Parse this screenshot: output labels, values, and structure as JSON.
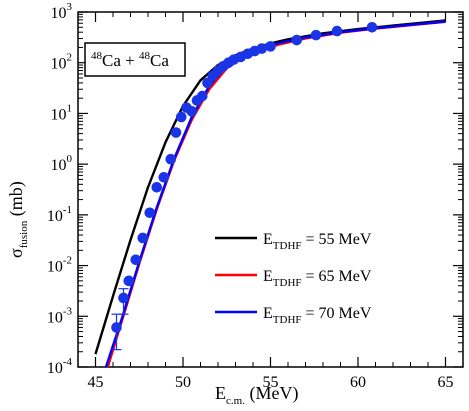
{
  "chart_data": {
    "type": "line",
    "annotation": {
      "a1": "48",
      "t1": "Ca + ",
      "a2": "48",
      "t2": "Ca"
    },
    "xlabel": {
      "main": "E",
      "sub": "c.m.",
      "unit": " (MeV)"
    },
    "ylabel": {
      "main": "σ",
      "sub": "fusion",
      "unit": " (mb)"
    },
    "xlim": [
      44,
      66
    ],
    "ylim_log10": [
      -4,
      3
    ],
    "y_scale": "log",
    "x_ticks": [
      45,
      50,
      55,
      60,
      65
    ],
    "x_tick_labels": [
      "45",
      "50",
      "55",
      "60",
      "65"
    ],
    "y_ticks": [
      -4,
      -3,
      -2,
      -1,
      0,
      1,
      2,
      3
    ],
    "y_tick_labels": [
      {
        "base": "10",
        "exp": "-4"
      },
      {
        "base": "10",
        "exp": "-3"
      },
      {
        "base": "10",
        "exp": "-2"
      },
      {
        "base": "10",
        "exp": "-1"
      },
      {
        "base": "10",
        "exp": "0"
      },
      {
        "base": "10",
        "exp": "1"
      },
      {
        "base": "10",
        "exp": "2"
      },
      {
        "base": "10",
        "exp": "3"
      }
    ],
    "legend_position": "bottom-right",
    "series": [
      {
        "name": {
          "main": "E",
          "sub": "TDHF",
          "rest": " = 55 MeV"
        },
        "color": "#000000",
        "x": [
          45.0,
          46.0,
          47.0,
          48.0,
          49.0,
          50.0,
          51.0,
          52.0,
          53.0,
          54.0,
          55.0,
          56.0,
          58.0,
          60.0,
          62.0,
          65.0
        ],
        "y": [
          0.00018,
          0.0025,
          0.032,
          0.35,
          2.7,
          14,
          45,
          90,
          140,
          190,
          240,
          290,
          380,
          460,
          540,
          680
        ]
      },
      {
        "name": {
          "main": "E",
          "sub": "TDHF",
          "rest": " = 65 MeV"
        },
        "color": "#ff0000",
        "x": [
          45.7,
          46.5,
          47.5,
          48.5,
          49.5,
          50.5,
          51.5,
          52.5,
          53.5,
          54.5,
          55.5,
          57.0,
          59.0,
          61.0,
          63.0,
          65.0
        ],
        "y": [
          0.0001,
          0.0008,
          0.011,
          0.13,
          1.2,
          7.5,
          30,
          78,
          130,
          180,
          230,
          300,
          390,
          470,
          550,
          640
        ]
      },
      {
        "name": {
          "main": "E",
          "sub": "TDHF",
          "rest": " = 70 MeV"
        },
        "color": "#0000ff",
        "x": [
          45.6,
          46.5,
          47.5,
          48.5,
          49.5,
          50.5,
          51.5,
          52.5,
          53.5,
          54.5,
          55.5,
          57.0,
          59.0,
          61.0,
          63.0,
          65.0
        ],
        "y": [
          0.0001,
          0.0009,
          0.012,
          0.14,
          1.3,
          8.5,
          35,
          88,
          145,
          195,
          245,
          315,
          400,
          480,
          560,
          650
        ]
      }
    ],
    "points": {
      "color": "#1a35e6",
      "x": [
        46.2,
        46.6,
        46.9,
        47.3,
        47.7,
        48.1,
        48.5,
        48.9,
        49.3,
        49.6,
        49.9,
        50.2,
        50.5,
        50.8,
        51.1,
        51.4,
        51.7,
        52.0,
        52.3,
        52.6,
        52.9,
        53.3,
        53.7,
        54.1,
        54.5,
        55.0,
        56.5,
        57.6,
        58.8,
        60.8
      ],
      "y": [
        0.0006,
        0.0023,
        0.005,
        0.013,
        0.035,
        0.11,
        0.35,
        0.55,
        1.25,
        4.2,
        8.5,
        13,
        11,
        18,
        22,
        40,
        55,
        70,
        85,
        100,
        115,
        130,
        150,
        170,
        190,
        210,
        280,
        350,
        420,
        500
      ],
      "err_low": [
        0.00022,
        0.0011,
        0,
        0,
        0,
        0,
        0,
        0,
        0,
        0,
        0,
        0,
        0,
        0,
        0,
        0,
        0,
        0,
        0,
        0,
        0,
        0,
        0,
        0,
        0,
        0,
        0,
        0,
        0,
        0
      ],
      "err_high": [
        0.0011,
        0.0035,
        0,
        0,
        0,
        0,
        0,
        0,
        0,
        0,
        0,
        0,
        0,
        0,
        0,
        0,
        0,
        0,
        0,
        0,
        0,
        0,
        0,
        0,
        0,
        0,
        0,
        0,
        0,
        0
      ]
    }
  }
}
